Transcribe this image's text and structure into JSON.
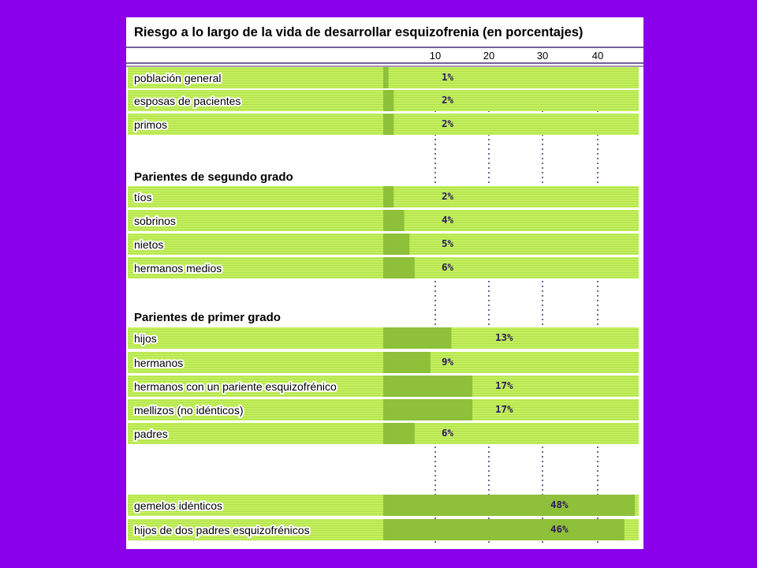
{
  "colors": {
    "background": "#8a00ea",
    "row_fill": "#c4f060",
    "row_stripe": "#b0e048",
    "bar_fill": "#8ec03a",
    "header_lines": "#4b2a7a",
    "value_text": "#2e1a5e"
  },
  "chart_data": {
    "type": "bar",
    "orientation": "horizontal",
    "title": "Riesgo a lo largo de la vida de desarrollar esquizofrenia (en porcentajes)",
    "xlabel": "",
    "ylabel": "",
    "xticks": [
      10,
      20,
      30,
      40
    ],
    "grid": true,
    "groups": [
      {
        "heading": "",
        "rows": [
          {
            "label": "población general",
            "value": 1,
            "value_label": "1%"
          },
          {
            "label": "esposas de pacientes",
            "value": 2,
            "value_label": "2%"
          },
          {
            "label": "primos",
            "value": 2,
            "value_label": "2%"
          }
        ]
      },
      {
        "heading": "Parientes de segundo grado",
        "rows": [
          {
            "label": "tíos",
            "value": 2,
            "value_label": "2%"
          },
          {
            "label": "sobrinos",
            "value": 4,
            "value_label": "4%"
          },
          {
            "label": "nietos",
            "value": 5,
            "value_label": "5%"
          },
          {
            "label": "hermanos medios",
            "value": 6,
            "value_label": "6%"
          }
        ]
      },
      {
        "heading": "Parientes de primer grado",
        "rows": [
          {
            "label": "hijos",
            "value": 13,
            "value_label": "13%"
          },
          {
            "label": "hermanos",
            "value": 9,
            "value_label": "9%"
          },
          {
            "label": "hermanos con un pariente esquizofrénico",
            "value": 17,
            "value_label": "17%"
          },
          {
            "label": "mellizos (no idénticos)",
            "value": 17,
            "value_label": "17%"
          },
          {
            "label": "padres",
            "value": 6,
            "value_label": "6%"
          }
        ]
      },
      {
        "heading": "",
        "rows": [
          {
            "label": "gemelos idénticos",
            "value": 48,
            "value_label": "48%"
          },
          {
            "label": "hijos de dos padres esquizofrénicos",
            "value": 46,
            "value_label": "46%"
          }
        ]
      }
    ]
  }
}
